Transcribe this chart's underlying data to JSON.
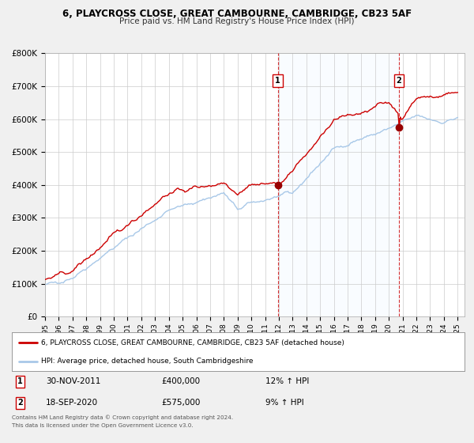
{
  "title_line1": "6, PLAYCROSS CLOSE, GREAT CAMBOURNE, CAMBRIDGE, CB23 5AF",
  "title_line2": "Price paid vs. HM Land Registry's House Price Index (HPI)",
  "ylim": [
    0,
    800000
  ],
  "yticks": [
    0,
    100000,
    200000,
    300000,
    400000,
    500000,
    600000,
    700000,
    800000
  ],
  "ytick_labels": [
    "£0",
    "£100K",
    "£200K",
    "£300K",
    "£400K",
    "£500K",
    "£600K",
    "£700K",
    "£800K"
  ],
  "xlim_start": 1995.0,
  "xlim_end": 2025.5,
  "sale1_date": 2011.92,
  "sale1_price": 400000,
  "sale1_label": "1",
  "sale1_date_str": "30-NOV-2011",
  "sale1_price_str": "£400,000",
  "sale1_hpi_str": "12% ↑ HPI",
  "sale2_date": 2020.72,
  "sale2_price": 575000,
  "sale2_label": "2",
  "sale2_date_str": "18-SEP-2020",
  "sale2_price_str": "£575,000",
  "sale2_hpi_str": "9% ↑ HPI",
  "line_color_house": "#cc0000",
  "line_color_hpi": "#a8c8e8",
  "background_color": "#f0f0f0",
  "plot_bg_color": "#ffffff",
  "grid_color": "#cccccc",
  "span_color": "#ddeeff",
  "legend_label_house": "6, PLAYCROSS CLOSE, GREAT CAMBOURNE, CAMBRIDGE, CB23 5AF (detached house)",
  "legend_label_hpi": "HPI: Average price, detached house, South Cambridgeshire",
  "footer1": "Contains HM Land Registry data © Crown copyright and database right 2024.",
  "footer2": "This data is licensed under the Open Government Licence v3.0."
}
